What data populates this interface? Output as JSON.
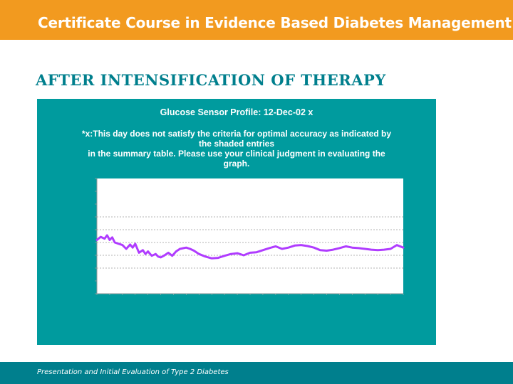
{
  "header": {
    "title": "Certificate Course in Evidence Based Diabetes Management"
  },
  "slide": {
    "heading": "AFTER INTENSIFICATION OF THERAPY"
  },
  "footer": {
    "text": "Presentation and Initial Evaluation of Type 2 Diabetes"
  },
  "colors": {
    "header": "#f29a1f",
    "teal": "#009b9e",
    "dark_teal": "#007f8d",
    "series": "#b03cff"
  },
  "chart_data": {
    "type": "line",
    "title": "Glucose Sensor Profile: 12-Dec-02 x",
    "note_lines": [
      "*x:This day does not satisfy the criteria for optimal accuracy as indicated by",
      "the shaded entries",
      "in the summary table. Please use your clinical judgment in evaluating the",
      "graph."
    ],
    "ylim": [
      -50,
      400
    ],
    "y_ticks": [
      -50,
      0,
      50,
      100,
      150,
      200,
      250,
      300,
      350,
      400
    ],
    "y_grid_values": [
      50,
      100,
      150,
      200,
      250
    ],
    "xlim": [
      0,
      24
    ],
    "grid": true,
    "series": [
      {
        "x": [
          0,
          0.3,
          0.6,
          0.8,
          1,
          1.2,
          1.4,
          1.7,
          2,
          2.3,
          2.6,
          2.8,
          3,
          3.3,
          3.6,
          3.8,
          4,
          4.3,
          4.6,
          4.8,
          5,
          5.3,
          5.6,
          5.9,
          6.2,
          6.5,
          6.8,
          7,
          7.3,
          7.6,
          8,
          8.5,
          9,
          9.5,
          10,
          10.5,
          11,
          11.5,
          12,
          12.5,
          13,
          13.5,
          14,
          14.5,
          15,
          15.5,
          16,
          16.5,
          17,
          17.5,
          18,
          18.5,
          19,
          19.5,
          20,
          20.5,
          21,
          21.5,
          22,
          22.5,
          23,
          23.5,
          24
        ],
        "y": [
          160,
          172,
          165,
          178,
          160,
          170,
          150,
          145,
          140,
          125,
          142,
          130,
          145,
          110,
          120,
          105,
          115,
          98,
          105,
          95,
          92,
          100,
          110,
          98,
          115,
          125,
          128,
          130,
          125,
          118,
          105,
          95,
          88,
          90,
          98,
          105,
          108,
          100,
          110,
          112,
          120,
          128,
          135,
          125,
          130,
          138,
          140,
          136,
          130,
          120,
          118,
          122,
          128,
          135,
          130,
          128,
          125,
          122,
          120,
          122,
          125,
          140,
          130
        ]
      }
    ]
  }
}
